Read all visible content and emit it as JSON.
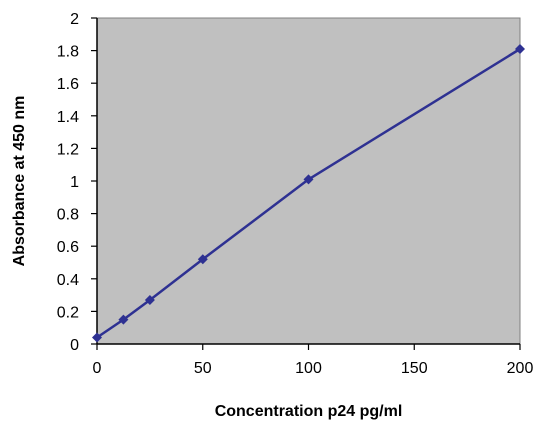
{
  "chart_data": {
    "type": "scatter",
    "title": "",
    "xlabel": "Concentration p24 pg/ml",
    "ylabel": "Absorbance at 450 nm",
    "xlim": [
      0,
      200
    ],
    "ylim": [
      0,
      2
    ],
    "x_ticks": [
      "0",
      "50",
      "100",
      "150",
      "200"
    ],
    "y_ticks": [
      "0",
      "0.2",
      "0.4",
      "0.6",
      "0.8",
      "1",
      "1.2",
      "1.4",
      "1.6",
      "1.8",
      "2"
    ],
    "grid": false,
    "legend": "none",
    "series": [
      {
        "x": [
          0,
          12.5,
          25,
          50,
          100,
          200
        ],
        "y": [
          0.04,
          0.15,
          0.27,
          0.52,
          1.01,
          1.81
        ],
        "marker": "diamond",
        "connected": true
      }
    ],
    "colors": {
      "plot_background": "#c0c0c0",
      "series": "#2e3192",
      "axis": "#000000",
      "plot_border": "#808080"
    }
  }
}
